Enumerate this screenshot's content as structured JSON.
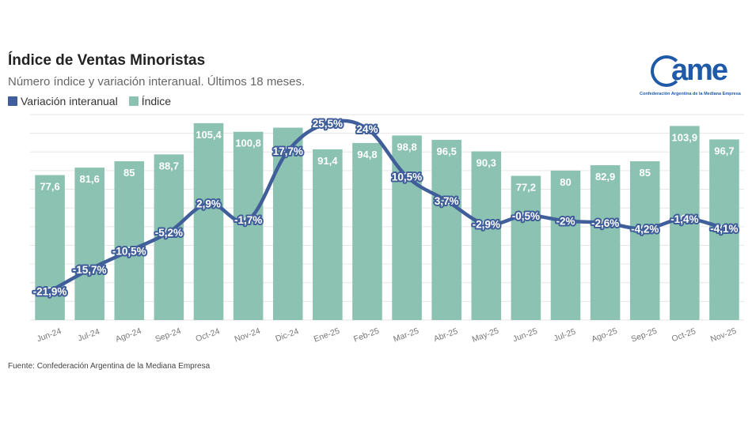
{
  "header": {
    "title": "Índice de Ventas Minoristas",
    "subtitle": "Número índice y variación interanual. Últimos 18 meses."
  },
  "logo": {
    "mark": "ame",
    "caption": "Confederación Argentina de la Mediana Empresa"
  },
  "source": "Fuente: Confederación Argentina de la Mediana Empresa",
  "colors": {
    "bar": "#8cc2b1",
    "line": "#3f5e9a",
    "barLabel": "#ffffff",
    "grid": "#e6e6e6"
  },
  "chart_data": {
    "type": "bar",
    "title": "Índice de Ventas Minoristas",
    "categories": [
      "Jun-24",
      "Jul-24",
      "Ago-24",
      "Sep-24",
      "Oct-24",
      "Nov-24",
      "Dic-24",
      "Ene-25",
      "Feb-25",
      "Mar-25",
      "Abr-25",
      "May-25",
      "Jun-25",
      "Jul-25",
      "Ago-25",
      "Sep-25",
      "Oct-25",
      "Nov-25"
    ],
    "series": [
      {
        "name": "Índice",
        "type": "bar",
        "axis": "left",
        "values": [
          77.6,
          81.6,
          85,
          88.7,
          105.4,
          100.8,
          null,
          91.4,
          94.8,
          98.8,
          96.5,
          90.3,
          77.2,
          80,
          82.9,
          85,
          103.9,
          96.7
        ],
        "labels": [
          "77,6",
          "81,6",
          "85",
          "88,7",
          "105,4",
          "100,8",
          "",
          "91,4",
          "94,8",
          "98,8",
          "96,5",
          "90,3",
          "77,2",
          "80",
          "82,9",
          "85",
          "103,9",
          "96,7"
        ]
      },
      {
        "name": "Variación interanual",
        "type": "line",
        "axis": "right",
        "values": [
          -21.9,
          -15.7,
          -10.5,
          -5.2,
          2.9,
          -1.7,
          17.7,
          25.5,
          24,
          10.5,
          3.7,
          -2.9,
          -0.5,
          -2,
          -2.6,
          -4.2,
          -1.4,
          -4.1
        ],
        "labels": [
          "-21,9%",
          "-15,7%",
          "-10,5%",
          "-5,2%",
          "2,9%",
          "-1,7%",
          "17,7%",
          "25,5%",
          "24%",
          "10,5%",
          "3,7%",
          "-2,9%",
          "-0,5%",
          "-2%",
          "-2,6%",
          "-4,2%",
          "-1,4%",
          "-4,1%"
        ]
      }
    ],
    "bar_axis_range": [
      0,
      110
    ],
    "line_axis_range": [
      -30,
      28
    ],
    "dic24_bar_estimate": 103,
    "legend": [
      "Variación interanual",
      "Índice"
    ],
    "legend_position": "top-left",
    "grid": true
  }
}
